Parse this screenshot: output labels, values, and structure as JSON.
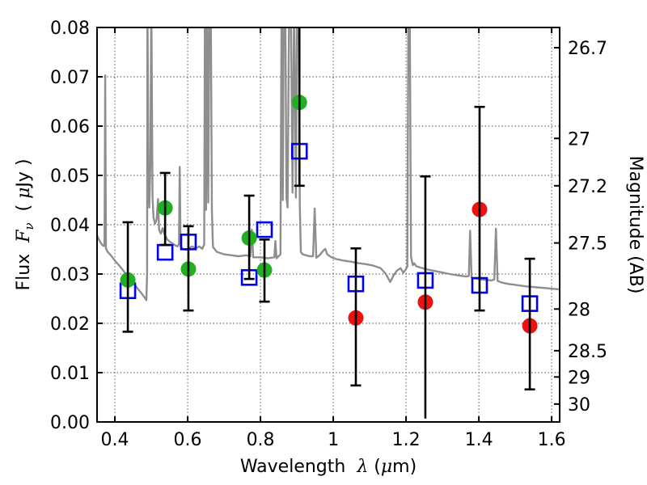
{
  "figure_bg": "#ffffff",
  "chart_data": {
    "type": "scatter",
    "title": "",
    "xlabel_parts": [
      {
        "t": "Wavelength  ",
        "style": "plain"
      },
      {
        "t": "λ",
        "style": "math"
      },
      {
        "t": " (",
        "style": "plain"
      },
      {
        "t": "μ",
        "style": "math"
      },
      {
        "t": "m)",
        "style": "plain"
      }
    ],
    "ylabel_left_parts": [
      {
        "t": "Flux  ",
        "style": "plain"
      },
      {
        "t": "F",
        "style": "math"
      },
      {
        "t": "ν",
        "style": "mathsub"
      },
      {
        "t": "  ( ",
        "style": "plain"
      },
      {
        "t": "μ",
        "style": "math"
      },
      {
        "t": "Jy )",
        "style": "plain"
      }
    ],
    "ylabel_right": "Magnitude (AB)",
    "xlim": [
      0.351,
      1.622
    ],
    "ylim": [
      0,
      0.08
    ],
    "grid": {
      "on": true,
      "style": "dotted",
      "color": "#444444"
    },
    "x_ticks": [
      {
        "v": 0.4,
        "label": "0.4"
      },
      {
        "v": 0.6,
        "label": "0.6"
      },
      {
        "v": 0.8,
        "label": "0.8"
      },
      {
        "v": 1.0,
        "label": "1"
      },
      {
        "v": 1.2,
        "label": "1.2"
      },
      {
        "v": 1.4,
        "label": "1.4"
      },
      {
        "v": 1.6,
        "label": "1.6"
      }
    ],
    "y_ticks_left": [
      {
        "v": 0.0,
        "label": "0.00"
      },
      {
        "v": 0.01,
        "label": "0.01"
      },
      {
        "v": 0.02,
        "label": "0.02"
      },
      {
        "v": 0.03,
        "label": "0.03"
      },
      {
        "v": 0.04,
        "label": "0.04"
      },
      {
        "v": 0.05,
        "label": "0.05"
      },
      {
        "v": 0.06,
        "label": "0.06"
      },
      {
        "v": 0.07,
        "label": "0.07"
      },
      {
        "v": 0.08,
        "label": "0.08"
      }
    ],
    "y_ticks_right": [
      {
        "flux": 0.0759,
        "label": "26.7"
      },
      {
        "flux": 0.0575,
        "label": "27"
      },
      {
        "flux": 0.0479,
        "label": "27.2"
      },
      {
        "flux": 0.0363,
        "label": "27.5"
      },
      {
        "flux": 0.0229,
        "label": "28"
      },
      {
        "flux": 0.01445,
        "label": "28.5"
      },
      {
        "flux": 0.00912,
        "label": "29"
      },
      {
        "flux": 0.00363,
        "label": "30"
      }
    ],
    "series": [
      {
        "name": "model-spectrum",
        "type": "line",
        "color": "#8e8e8e",
        "width": 2.4,
        "points": [
          [
            0.351,
            0.0378
          ],
          [
            0.356,
            0.037
          ],
          [
            0.362,
            0.0362
          ],
          [
            0.368,
            0.0357
          ],
          [
            0.3715,
            0.0357
          ],
          [
            0.3735,
            0.0703
          ],
          [
            0.3755,
            0.0352
          ],
          [
            0.38,
            0.0345
          ],
          [
            0.39,
            0.0337
          ],
          [
            0.4,
            0.0327
          ],
          [
            0.412,
            0.0317
          ],
          [
            0.424,
            0.0306
          ],
          [
            0.435,
            0.0295
          ],
          [
            0.444,
            0.0287
          ],
          [
            0.452,
            0.028
          ],
          [
            0.462,
            0.0271
          ],
          [
            0.472,
            0.0262
          ],
          [
            0.48,
            0.0254
          ],
          [
            0.4865,
            0.0247
          ],
          [
            0.4885,
            0.0302
          ],
          [
            0.4895,
            0.086
          ],
          [
            0.4925,
            0.047
          ],
          [
            0.4945,
            0.0435
          ],
          [
            0.4975,
            0.052
          ],
          [
            0.5,
            0.086
          ],
          [
            0.5035,
            0.0455
          ],
          [
            0.506,
            0.0415
          ],
          [
            0.51,
            0.0402
          ],
          [
            0.5145,
            0.041
          ],
          [
            0.5185,
            0.0452
          ],
          [
            0.5215,
            0.039
          ],
          [
            0.526,
            0.0382
          ],
          [
            0.5315,
            0.0393
          ],
          [
            0.536,
            0.0381
          ],
          [
            0.543,
            0.0371
          ],
          [
            0.55,
            0.0366
          ],
          [
            0.558,
            0.0362
          ],
          [
            0.566,
            0.0358
          ],
          [
            0.5725,
            0.0356
          ],
          [
            0.576,
            0.0362
          ],
          [
            0.578,
            0.0517
          ],
          [
            0.5805,
            0.0356
          ],
          [
            0.586,
            0.0351
          ],
          [
            0.594,
            0.0349
          ],
          [
            0.602,
            0.0351
          ],
          [
            0.612,
            0.0356
          ],
          [
            0.622,
            0.0352
          ],
          [
            0.632,
            0.0356
          ],
          [
            0.64,
            0.0351
          ],
          [
            0.6455,
            0.036
          ],
          [
            0.6475,
            0.086
          ],
          [
            0.6505,
            0.043
          ],
          [
            0.6535,
            0.086
          ],
          [
            0.6565,
            0.0445
          ],
          [
            0.66,
            0.086
          ],
          [
            0.6635,
            0.086
          ],
          [
            0.6665,
            0.043
          ],
          [
            0.6695,
            0.0355
          ],
          [
            0.68,
            0.0345
          ],
          [
            0.7,
            0.034
          ],
          [
            0.72,
            0.0338
          ],
          [
            0.74,
            0.0336
          ],
          [
            0.76,
            0.0338
          ],
          [
            0.772,
            0.0336
          ],
          [
            0.776,
            0.039
          ],
          [
            0.78,
            0.0334
          ],
          [
            0.8,
            0.0334
          ],
          [
            0.82,
            0.0332
          ],
          [
            0.838,
            0.0334
          ],
          [
            0.841,
            0.0367
          ],
          [
            0.844,
            0.0332
          ],
          [
            0.855,
            0.034
          ],
          [
            0.858,
            0.086
          ],
          [
            0.8615,
            0.045
          ],
          [
            0.864,
            0.086
          ],
          [
            0.868,
            0.086
          ],
          [
            0.8715,
            0.0455
          ],
          [
            0.8745,
            0.0435
          ],
          [
            0.879,
            0.086
          ],
          [
            0.8835,
            0.086
          ],
          [
            0.888,
            0.0465
          ],
          [
            0.8925,
            0.086
          ],
          [
            0.8975,
            0.0455
          ],
          [
            0.901,
            0.086
          ],
          [
            0.905,
            0.086
          ],
          [
            0.908,
            0.044
          ],
          [
            0.911,
            0.0345
          ],
          [
            0.916,
            0.034
          ],
          [
            0.925,
            0.0338
          ],
          [
            0.935,
            0.0336
          ],
          [
            0.9445,
            0.0336
          ],
          [
            0.949,
            0.0433
          ],
          [
            0.9535,
            0.0333
          ],
          [
            0.962,
            0.0338
          ],
          [
            0.9735,
            0.0348
          ],
          [
            0.978,
            0.0351
          ],
          [
            0.9835,
            0.034
          ],
          [
            0.995,
            0.0334
          ],
          [
            1.01,
            0.033
          ],
          [
            1.03,
            0.0327
          ],
          [
            1.05,
            0.0325
          ],
          [
            1.07,
            0.0322
          ],
          [
            1.09,
            0.032
          ],
          [
            1.11,
            0.0317
          ],
          [
            1.13,
            0.0312
          ],
          [
            1.1445,
            0.03
          ],
          [
            1.1565,
            0.0284
          ],
          [
            1.1655,
            0.0297
          ],
          [
            1.175,
            0.0307
          ],
          [
            1.185,
            0.0312
          ],
          [
            1.1925,
            0.0303
          ],
          [
            1.199,
            0.0309
          ],
          [
            1.2035,
            0.0315
          ],
          [
            1.2065,
            0.086
          ],
          [
            1.21,
            0.086
          ],
          [
            1.2135,
            0.0335
          ],
          [
            1.2185,
            0.0318
          ],
          [
            1.2225,
            0.0322
          ],
          [
            1.2275,
            0.0316
          ],
          [
            1.24,
            0.0313
          ],
          [
            1.26,
            0.0309
          ],
          [
            1.28,
            0.0306
          ],
          [
            1.3,
            0.0303
          ],
          [
            1.32,
            0.03
          ],
          [
            1.345,
            0.0297
          ],
          [
            1.365,
            0.0295
          ],
          [
            1.3725,
            0.0296
          ],
          [
            1.376,
            0.0388
          ],
          [
            1.38,
            0.0293
          ],
          [
            1.39,
            0.0291
          ],
          [
            1.405,
            0.0289
          ],
          [
            1.42,
            0.0288
          ],
          [
            1.435,
            0.0287
          ],
          [
            1.4425,
            0.0289
          ],
          [
            1.447,
            0.0392
          ],
          [
            1.4515,
            0.0286
          ],
          [
            1.462,
            0.0283
          ],
          [
            1.48,
            0.028
          ],
          [
            1.5,
            0.0278
          ],
          [
            1.53,
            0.0275
          ],
          [
            1.56,
            0.0273
          ],
          [
            1.59,
            0.0271
          ],
          [
            1.622,
            0.0269
          ]
        ]
      },
      {
        "name": "blue-open-square-photometry",
        "type": "scatter",
        "marker": "open-square",
        "color": "#0000ee",
        "size": 18,
        "points": [
          [
            0.4356,
            0.0266
          ],
          [
            0.538,
            0.0344
          ],
          [
            0.602,
            0.0365
          ],
          [
            0.769,
            0.0293
          ],
          [
            0.811,
            0.039
          ],
          [
            0.907,
            0.0549
          ],
          [
            1.062,
            0.028
          ],
          [
            1.253,
            0.0287
          ],
          [
            1.402,
            0.0277
          ],
          [
            1.54,
            0.024
          ]
        ],
        "errorbars": []
      },
      {
        "name": "green-circle-photometry",
        "type": "scatter",
        "marker": "circle",
        "color": "#22b022",
        "size": 19,
        "points": [
          [
            0.4356,
            0.0288
          ],
          [
            0.538,
            0.0434
          ],
          [
            0.602,
            0.031
          ],
          [
            0.769,
            0.0373
          ],
          [
            0.811,
            0.0308
          ],
          [
            0.907,
            0.0648
          ]
        ],
        "errorbars": [
          {
            "x": 0.4356,
            "lo": 0.0183,
            "hi": 0.0405,
            "cap_lo": true,
            "cap_hi": true
          },
          {
            "x": 0.538,
            "lo": 0.0359,
            "hi": 0.0505,
            "cap_lo": true,
            "cap_hi": true
          },
          {
            "x": 0.602,
            "lo": 0.0226,
            "hi": 0.0397,
            "cap_lo": true,
            "cap_hi": true
          },
          {
            "x": 0.769,
            "lo": 0.029,
            "hi": 0.0459,
            "cap_lo": true,
            "cap_hi": true
          },
          {
            "x": 0.811,
            "lo": 0.0244,
            "hi": 0.037,
            "cap_lo": true,
            "cap_hi": true
          },
          {
            "x": 0.907,
            "lo": 0.0479,
            "hi": 0.0817,
            "cap_lo": true,
            "cap_hi": false
          }
        ]
      },
      {
        "name": "red-circle-photometry",
        "type": "scatter",
        "marker": "circle",
        "color": "#ee1111",
        "size": 19,
        "points": [
          [
            1.062,
            0.0211
          ],
          [
            1.253,
            0.0243
          ],
          [
            1.402,
            0.0431
          ],
          [
            1.54,
            0.0195
          ]
        ],
        "errorbars": [
          {
            "x": 1.062,
            "lo": 0.0074,
            "hi": 0.0352,
            "cap_lo": true,
            "cap_hi": true
          },
          {
            "x": 1.253,
            "lo": 0.0007,
            "hi": 0.0498,
            "cap_lo": false,
            "cap_hi": true
          },
          {
            "x": 1.402,
            "lo": 0.0226,
            "hi": 0.0639,
            "cap_lo": true,
            "cap_hi": true
          },
          {
            "x": 1.54,
            "lo": 0.0066,
            "hi": 0.0331,
            "cap_lo": true,
            "cap_hi": true
          }
        ]
      }
    ],
    "errorbar_color": "#000000"
  }
}
